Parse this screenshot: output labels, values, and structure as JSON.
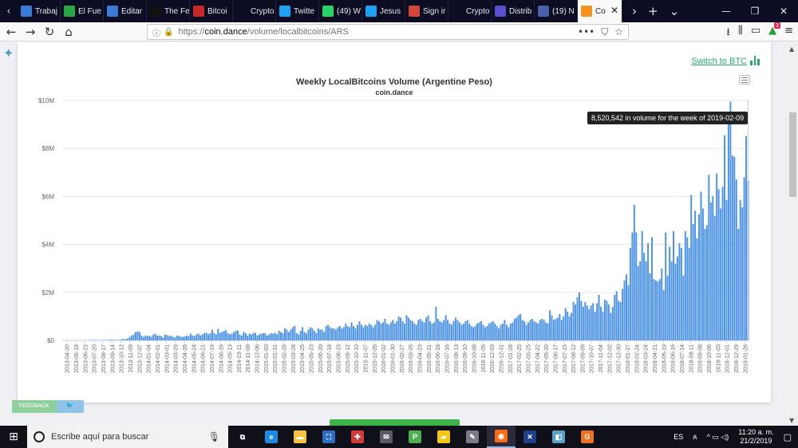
{
  "tabs": [
    {
      "label": "Trabaj",
      "icon": "edit-doc-icon",
      "color": "#3a7bd5"
    },
    {
      "label": "El Fue",
      "icon": "px-icon",
      "color": "#27a844"
    },
    {
      "label": "Editar",
      "icon": "edit-doc-icon",
      "color": "#3a7bd5"
    },
    {
      "label": "The Fe",
      "icon": "b-logo-icon",
      "color": "#111111"
    },
    {
      "label": "Bitcoi",
      "icon": "st-icon",
      "color": "#c62828"
    },
    {
      "label": "Crypto",
      "icon": "blank-icon",
      "color": "#0c0c22"
    },
    {
      "label": "Twitte",
      "icon": "twitter-icon",
      "color": "#1da1f2"
    },
    {
      "label": "(49) W",
      "icon": "whatsapp-icon",
      "color": "#25d366"
    },
    {
      "label": "Jesus",
      "icon": "twitter-icon",
      "color": "#1da1f2"
    },
    {
      "label": "Sign ir",
      "icon": "mail-icon",
      "color": "#d44638"
    },
    {
      "label": "Crypto",
      "icon": "d-logo-icon",
      "color": "#0c0c22"
    },
    {
      "label": "Distrib",
      "icon": "play-icon",
      "color": "#5a4fcf"
    },
    {
      "label": "(19) N",
      "icon": "tf-icon",
      "color": "#4a5da8"
    },
    {
      "label": "Co",
      "icon": "bitcoin-icon",
      "color": "#f7931a"
    }
  ],
  "tab_glyphs": {
    "prev": "‹",
    "next": "›",
    "new": "+",
    "list": "⌄",
    "close": "✕"
  },
  "window": {
    "minimize": "—",
    "maximize": "❐",
    "close": "✕"
  },
  "nav": {
    "back": "←",
    "forward": "→",
    "reload": "↻",
    "home": "⌂"
  },
  "url": {
    "scheme": "https://",
    "host": "coin.dance",
    "path": "/volume/localbitcoins/ARS"
  },
  "url_actions": {
    "more": "•••",
    "pocket": "⛉",
    "bookmark": "☆"
  },
  "toolbar_right": {
    "download": "⭳",
    "library": "⫼",
    "sidebar": "▭",
    "ext": "▲",
    "ext_badge": "3",
    "menu": "≡"
  },
  "page": {
    "switch_label": "Switch to BTC",
    "feedback_label": "FEEDBACK",
    "twitter_glyph": "🐦",
    "side_glyph": "✦",
    "scroll_up": "▲",
    "scroll_down": "▼"
  },
  "chart_data": {
    "type": "bar",
    "title": "Weekly LocalBitcoins Volume (Argentine Peso)",
    "subtitle": "coin.dance",
    "xlabel": "",
    "ylabel": "",
    "ylim": [
      0,
      10000000
    ],
    "y_ticks": [
      0,
      2000000,
      4000000,
      6000000,
      8000000,
      10000000
    ],
    "y_tick_labels": [
      "$0",
      "$2M",
      "$4M",
      "$6M",
      "$8M",
      "$10M"
    ],
    "bar_color": "#4d94e8",
    "grid": true,
    "x_tick_labels": [
      "2013-04-20",
      "2013-05-18",
      "2013-06-22",
      "2013-07-20",
      "2013-08-17",
      "2013-09-14",
      "2013-10-12",
      "2013-11-09",
      "2013-12-07",
      "2014-01-04",
      "2014-02-01",
      "2014-03-01",
      "2014-03-29",
      "2014-04-26",
      "2014-05-24",
      "2014-06-21",
      "2014-07-19",
      "2014-08-16",
      "2014-09-13",
      "2014-10-11",
      "2014-11-08",
      "2014-12-06",
      "2015-01-03",
      "2015-01-31",
      "2015-02-28",
      "2015-03-28",
      "2015-04-25",
      "2015-05-23",
      "2015-06-20",
      "2015-07-18",
      "2015-08-15",
      "2015-09-12",
      "2015-10-10",
      "2015-11-07",
      "2015-12-05",
      "2016-01-02",
      "2016-01-30",
      "2016-02-27",
      "2016-03-26",
      "2016-04-23",
      "2016-05-21",
      "2016-06-18",
      "2016-07-16",
      "2016-08-13",
      "2016-09-10",
      "2016-10-08",
      "2016-11-05",
      "2016-12-03",
      "2016-12-31",
      "2017-01-28",
      "2017-02-25",
      "2017-03-25",
      "2017-04-22",
      "2017-05-20",
      "2017-06-17",
      "2017-07-15",
      "2017-08-12",
      "2017-09-09",
      "2017-10-07",
      "2017-11-04",
      "2017-12-02",
      "2017-12-30",
      "2018-01-27",
      "2018-02-24",
      "2018-03-24",
      "2018-04-21",
      "2018-05-19",
      "2018-06-16",
      "2018-07-14",
      "2018-08-11",
      "2018-09-08",
      "2018-10-06",
      "2018-11-03",
      "2018-12-01",
      "2018-12-29",
      "2019-01-26"
    ],
    "values": [
      0,
      0,
      0,
      0,
      0,
      0,
      0,
      0,
      0,
      0,
      0,
      0,
      0,
      10000,
      10000,
      10000,
      15000,
      15000,
      15000,
      10000,
      10000,
      15000,
      15000,
      20000,
      20000,
      30000,
      20000,
      20000,
      20000,
      20000,
      50000,
      60000,
      50000,
      80000,
      150000,
      200000,
      250000,
      350000,
      380000,
      350000,
      200000,
      150000,
      200000,
      180000,
      200000,
      150000,
      250000,
      280000,
      200000,
      200000,
      180000,
      120000,
      250000,
      220000,
      180000,
      200000,
      150000,
      120000,
      200000,
      180000,
      150000,
      150000,
      170000,
      200000,
      180000,
      280000,
      200000,
      180000,
      250000,
      280000,
      200000,
      250000,
      300000,
      320000,
      250000,
      300000,
      450000,
      300000,
      250000,
      480000,
      320000,
      350000,
      400000,
      420000,
      300000,
      250000,
      280000,
      350000,
      400000,
      420000,
      250000,
      200000,
      350000,
      300000,
      200000,
      280000,
      250000,
      300000,
      320000,
      200000,
      250000,
      280000,
      300000,
      300000,
      200000,
      250000,
      300000,
      280000,
      320000,
      250000,
      400000,
      350000,
      300000,
      500000,
      450000,
      350000,
      450000,
      550000,
      600000,
      300000,
      250000,
      400000,
      550000,
      350000,
      300000,
      450000,
      550000,
      500000,
      400000,
      300000,
      500000,
      450000,
      450000,
      350000,
      600000,
      650000,
      550000,
      500000,
      500000,
      450000,
      550000,
      600000,
      500000,
      550000,
      700000,
      600000,
      550000,
      750000,
      600000,
      500000,
      650000,
      800000,
      650000,
      550000,
      650000,
      600000,
      700000,
      650000,
      550000,
      650000,
      850000,
      800000,
      700000,
      750000,
      900000,
      700000,
      650000,
      750000,
      850000,
      700000,
      800000,
      1000000,
      950000,
      800000,
      700000,
      1050000,
      950000,
      850000,
      800000,
      700000,
      650000,
      850000,
      900000,
      800000,
      750000,
      950000,
      1050000,
      800000,
      700000,
      750000,
      1400000,
      900000,
      800000,
      750000,
      850000,
      1050000,
      850000,
      700000,
      650000,
      800000,
      950000,
      850000,
      750000,
      650000,
      700000,
      800000,
      850000,
      700000,
      600000,
      550000,
      600000,
      700000,
      750000,
      800000,
      650000,
      550000,
      600000,
      700000,
      750000,
      800000,
      700000,
      600000,
      500000,
      650000,
      700000,
      850000,
      650000,
      550000,
      700000,
      750000,
      900000,
      950000,
      1050000,
      1100000,
      850000,
      800000,
      650000,
      750000,
      850000,
      900000,
      800000,
      750000,
      700000,
      850000,
      900000,
      850000,
      750000,
      700000,
      1250000,
      1050000,
      850000,
      900000,
      950000,
      1100000,
      850000,
      1000000,
      1350000,
      1200000,
      1000000,
      1150000,
      1600000,
      1500000,
      1800000,
      2000000,
      1650000,
      1400000,
      1600000,
      1450000,
      1300000,
      1450000,
      1550000,
      1200000,
      1550000,
      1900000,
      1400000,
      1200000,
      1700000,
      1650000,
      1500000,
      1150000,
      1400000,
      1900000,
      2050000,
      1650000,
      1600000,
      2150000,
      2500000,
      2750000,
      2300000,
      3850000,
      4500000,
      5650000,
      4500000,
      3100000,
      3300000,
      4550000,
      3650000,
      3300000,
      4050000,
      2800000,
      4300000,
      2550000,
      2500000,
      2450000,
      2550000,
      3000000,
      2100000,
      4500000,
      2700000,
      3900000,
      3300000,
      4550000,
      3200000,
      3500000,
      4050000,
      3850000,
      2700000,
      4550000,
      4300000,
      3850000,
      6050000,
      4850000,
      5400000,
      4250000,
      5250000,
      6200000,
      5500000,
      4650000,
      4800000,
      6900000,
      5750000,
      6000000,
      5200000,
      6950000,
      6300000,
      5500000,
      6400000,
      8550000,
      5850000,
      9100000,
      9950000,
      7700000,
      7650000,
      6700000,
      4650000,
      5850000,
      5550000,
      6800000,
      8520542,
      6650000
    ]
  },
  "tooltip": {
    "text": "8,520,542 in volume for the week of 2019-02-09"
  },
  "taskbar": {
    "start": "⊞",
    "search_placeholder": "Escribe aquí para buscar",
    "mic": "🎙",
    "apps": [
      {
        "name": "task-view-icon",
        "glyph": "⧉",
        "color": "#101019"
      },
      {
        "name": "edge-icon",
        "glyph": "e",
        "color": "#1e88e5"
      },
      {
        "name": "file-explorer-icon",
        "glyph": "▬",
        "color": "#f6c344"
      },
      {
        "name": "store-icon",
        "glyph": "⛶",
        "color": "#2b6cc4"
      },
      {
        "name": "gift-icon",
        "glyph": "✚",
        "color": "#d43a3a"
      },
      {
        "name": "mail-icon",
        "glyph": "✉",
        "color": "#5a5a66"
      },
      {
        "name": "p-app-icon",
        "glyph": "P",
        "color": "#4caf50"
      },
      {
        "name": "sticky-notes-icon",
        "glyph": "▰",
        "color": "#f3c716"
      },
      {
        "name": "paint-icon",
        "glyph": "✎",
        "color": "#7a7a88"
      },
      {
        "name": "firefox-icon",
        "glyph": "◉",
        "color": "#ff6a13"
      },
      {
        "name": "x-app-icon",
        "glyph": "✕",
        "color": "#1e3f8a"
      },
      {
        "name": "notes-icon",
        "glyph": "◧",
        "color": "#5aa0c8"
      },
      {
        "name": "blender-icon",
        "glyph": "G",
        "color": "#f07020"
      }
    ],
    "lang": "ES",
    "people": "ጰ",
    "tray_icons": "^  ▭  ◁)",
    "time": "11:20 a. m.",
    "date": "21/2/2019",
    "notification": "▢"
  }
}
